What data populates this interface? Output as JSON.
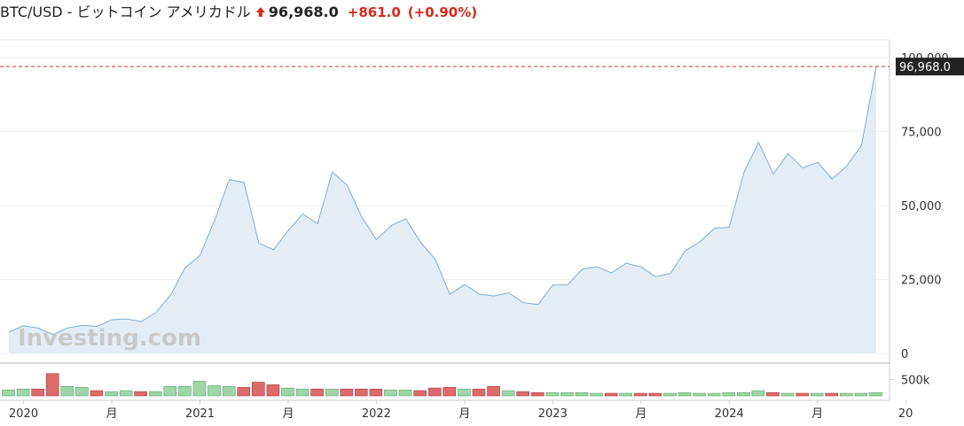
{
  "header": {
    "title": "BTC/USD - ビットコイン アメリカドル",
    "price": "96,968.0",
    "change": "+861.0",
    "change_pct": "(+0.90%)"
  },
  "watermark": "Investing.com",
  "chart_data": {
    "type": "area",
    "color": "#7aaed6",
    "fill": "#e4edf6",
    "values": [
      7200,
      9350,
      8540,
      6420,
      8630,
      9450,
      9140,
      11340,
      11650,
      10780,
      13800,
      19700,
      28990,
      33110,
      45140,
      58790,
      57720,
      37300,
      35040,
      41490,
      47130,
      43820,
      61320,
      56910,
      46210,
      38480,
      43180,
      45530,
      37640,
      31790,
      19930,
      23300,
      20050,
      19430,
      20490,
      17170,
      16540,
      23130,
      23140,
      28480,
      29250,
      27220,
      30480,
      29230,
      25940,
      26970,
      34650,
      37720,
      42270,
      42580,
      61130,
      71330,
      60670,
      67530,
      62700,
      64620,
      58970,
      63330,
      70290,
      96968
    ],
    "last_label": "96,968.0",
    "ylim": [
      0,
      100000
    ],
    "yticks": [
      0,
      {
        "value": 25000,
        "label": "25,000"
      },
      {
        "value": 50000,
        "label": "50,000"
      },
      {
        "value": 75000,
        "label": "75,000"
      },
      {
        "value": 100000,
        "label": "100,000"
      }
    ],
    "x_labels": [
      "2020",
      "月",
      "2021",
      "月",
      "2022",
      "月",
      "2023",
      "月",
      "2024",
      "月",
      "20"
    ],
    "volume": {
      "up_color": "#9fd6a9",
      "down_color": "#de6b6b",
      "values": [
        180000,
        210000,
        210000,
        680000,
        290000,
        260000,
        160000,
        130000,
        160000,
        130000,
        130000,
        290000,
        290000,
        450000,
        320000,
        290000,
        260000,
        420000,
        340000,
        240000,
        210000,
        210000,
        210000,
        210000,
        210000,
        210000,
        180000,
        180000,
        160000,
        240000,
        260000,
        210000,
        210000,
        290000,
        160000,
        130000,
        100000,
        100000,
        100000,
        100000,
        80000,
        80000,
        80000,
        80000,
        80000,
        80000,
        100000,
        80000,
        80000,
        100000,
        100000,
        160000,
        100000,
        80000,
        80000,
        80000,
        80000,
        80000,
        80000,
        100000
      ],
      "ylim": [
        0,
        1000000
      ],
      "yticks": [
        {
          "value": 500000,
          "label": "500k"
        }
      ]
    }
  }
}
